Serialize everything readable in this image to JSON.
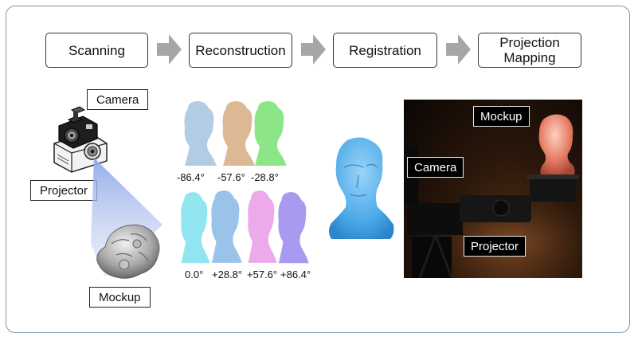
{
  "pipeline": {
    "steps": [
      {
        "label": "Scanning"
      },
      {
        "label": "Reconstruction"
      },
      {
        "label": "Registration"
      },
      {
        "label": "Projection\nMapping"
      }
    ]
  },
  "scanning": {
    "camera_label": "Camera",
    "projector_label": "Projector",
    "mockup_label": "Mockup"
  },
  "reconstruction": {
    "top_angles": [
      "-86.4°",
      "-57.6°",
      "-28.8°"
    ],
    "bottom_angles": [
      "0.0°",
      "+28.8°",
      "+57.6°",
      "+86.4°"
    ]
  },
  "projection": {
    "mockup_label": "Mockup",
    "camera_label": "Camera",
    "projector_label": "Projector"
  },
  "colors": {
    "bust_light_blue": "#a8c6e0",
    "bust_tan": "#d8b08a",
    "bust_green": "#7fe37a",
    "bust_cyan": "#7ee0ee",
    "bust_blue": "#8fbde8",
    "bust_pink": "#eaa0ea",
    "bust_purple": "#9f8ff0",
    "registered_bust": "#49a8e8",
    "arrow_gray": "#a6a6a6"
  }
}
